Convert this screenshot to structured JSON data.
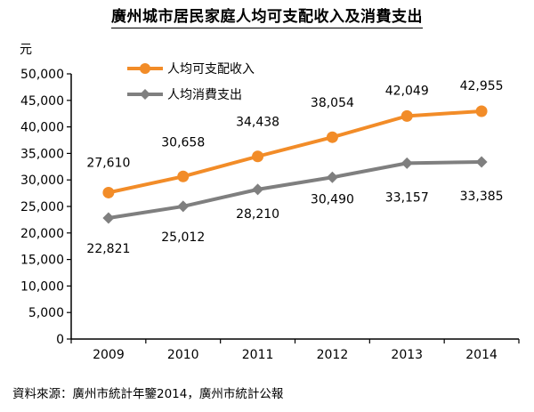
{
  "title": "廣州城市居民家庭人均可支配收入及消費支出",
  "source": "資料來源：廣州市統計年鑒2014，廣州市統計公報",
  "colors": {
    "income": "#F28C28",
    "spending": "#7F7F7F",
    "axis": "#000000"
  },
  "chart_data": {
    "type": "line",
    "title": "廣州城市居民家庭人均可支配收入及消費支出",
    "ylabel": "元",
    "xlabel": "",
    "categories": [
      "2009",
      "2010",
      "2011",
      "2012",
      "2013",
      "2014"
    ],
    "ylim": [
      0,
      50000
    ],
    "yticks": [
      0,
      5000,
      10000,
      15000,
      20000,
      25000,
      30000,
      35000,
      40000,
      45000,
      50000
    ],
    "ytick_labels": [
      "0",
      "5,000",
      "10,000",
      "15,000",
      "20,000",
      "25,000",
      "30,000",
      "35,000",
      "40,000",
      "45,000",
      "50,000"
    ],
    "grid": false,
    "legend_position": "top-left",
    "series": [
      {
        "name": "人均可支配收入",
        "values": [
          27610,
          30658,
          34438,
          38054,
          42049,
          42955
        ],
        "labels": [
          "27,610",
          "30,658",
          "34,438",
          "38,054",
          "42,049",
          "42,955"
        ],
        "marker": "circle",
        "label_position": "above"
      },
      {
        "name": "人均消費支出",
        "values": [
          22821,
          25012,
          28210,
          30490,
          33157,
          33385
        ],
        "labels": [
          "22,821",
          "25,012",
          "28,210",
          "30,490",
          "33,157",
          "33,385"
        ],
        "marker": "diamond",
        "label_position": "below"
      }
    ]
  }
}
